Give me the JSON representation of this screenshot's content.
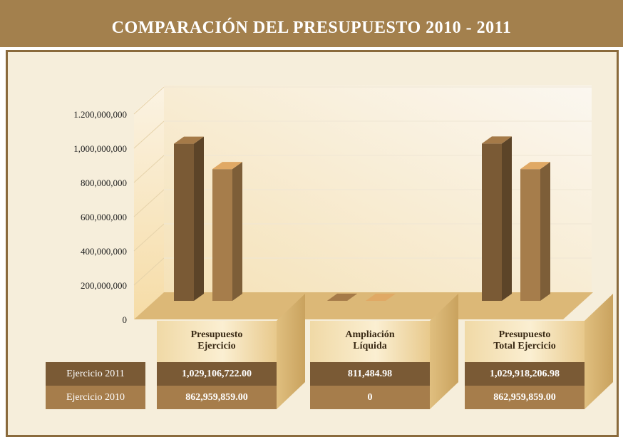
{
  "chart_data": {
    "type": "bar",
    "title": "COMPARACIÓN DEL PRESUPUESTO 2010 - 2011",
    "categories": [
      "Presupuesto\nEjercicio",
      "Ampliación\nLíquida",
      "Presupuesto\nTotal Ejercicio"
    ],
    "series": [
      {
        "name": "Ejercicio 2011",
        "color": "#7a5a35",
        "values": [
          1029106722,
          811484.98,
          1029918206.98
        ],
        "value_labels": [
          "1,029,106,722.00",
          "811,484.98",
          "1,029,918,206.98"
        ]
      },
      {
        "name": "Ejercicio 2010",
        "color": "#a67d4b",
        "values": [
          862959859,
          0,
          862959859
        ],
        "value_labels": [
          "862,959,859.00",
          "0",
          "862,959,859.00"
        ]
      }
    ],
    "ylim": [
      0,
      1200000000
    ],
    "yticks": [
      0,
      {
        "value": 200000000,
        "label": "200,000,000"
      },
      {
        "value": 400000000,
        "label": "400,000,000"
      },
      {
        "value": 600000000,
        "label": "600,000,000"
      },
      {
        "value": 800000000,
        "label": "800,000,000"
      },
      {
        "value": 1000000000,
        "label": "1,000,000,000"
      },
      {
        "value": 1200000000,
        "label": "1.200,000,000"
      }
    ],
    "grid": true
  }
}
